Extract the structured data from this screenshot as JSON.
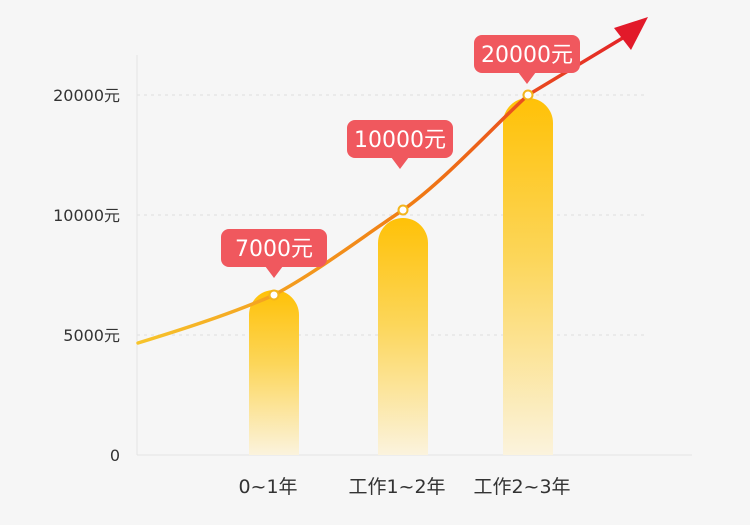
{
  "chart_data": {
    "type": "bar",
    "categories": [
      "0~1年",
      "工作1~2年",
      "工作2~3年"
    ],
    "values": [
      7000,
      10000,
      20000
    ],
    "data_labels": [
      "7000元",
      "10000元",
      "20000元"
    ],
    "y_ticks": [
      {
        "value": 0,
        "label": "0"
      },
      {
        "value": 5000,
        "label": "5000元"
      },
      {
        "value": 10000,
        "label": "10000元"
      },
      {
        "value": 20000,
        "label": "20000元"
      }
    ],
    "ylim": [
      0,
      20000
    ],
    "grid": true,
    "trend_line": {
      "type": "arrow",
      "values": [
        7000,
        10000,
        20000
      ]
    },
    "colors": {
      "bar_top": "#ffc107",
      "bar_bottom": "#fbf3dd",
      "trend_start": "#f7c52c",
      "trend_end": "#e21a2a",
      "bubble": "#f0585e",
      "grid": "#dddddd",
      "axis": "#e4e4e4"
    }
  }
}
